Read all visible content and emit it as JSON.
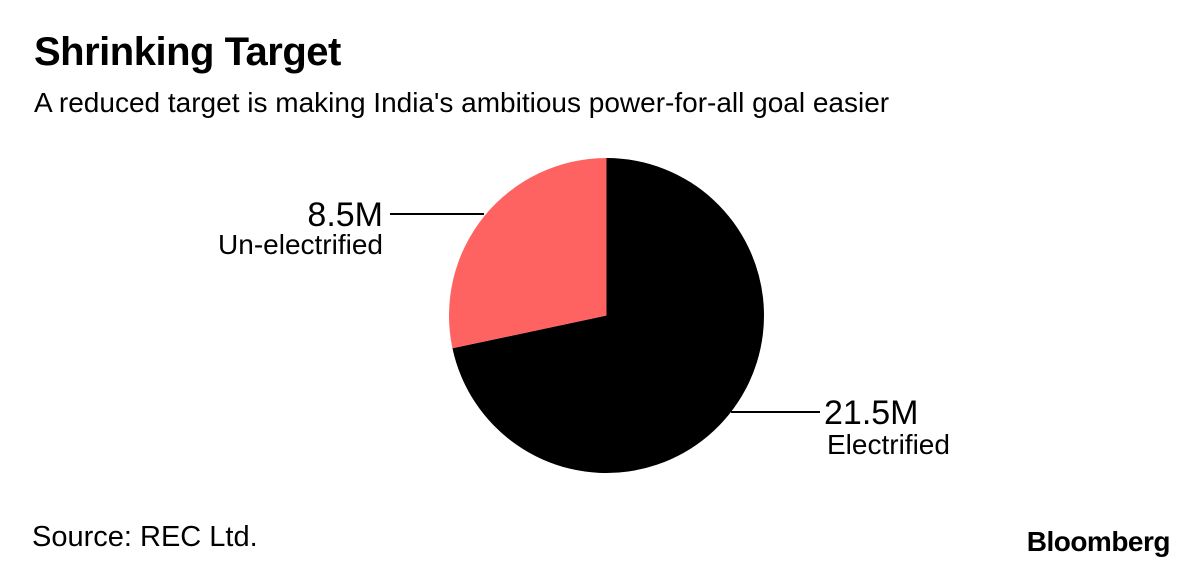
{
  "chart_data": {
    "type": "pie",
    "title": "Shrinking Target",
    "subtitle": "A reduced target is making India's ambitious power-for-all goal easier",
    "source": "Source: REC Ltd.",
    "brand": "Bloomberg",
    "unit": "million households (M)",
    "total": 30,
    "start_angle_deg": 0,
    "direction": "clockwise",
    "legend_position": "none (direct callout labels with leader lines)",
    "background_color": "#ffffff",
    "text_color": "#000000",
    "slices": [
      {
        "label": "Electrified",
        "value": 21.5,
        "display_value": "21.5M",
        "color": "#000000",
        "callout_side": "right"
      },
      {
        "label": "Un-electrified",
        "value": 8.5,
        "display_value": "8.5M",
        "color": "#ff6361",
        "callout_side": "left"
      }
    ]
  }
}
